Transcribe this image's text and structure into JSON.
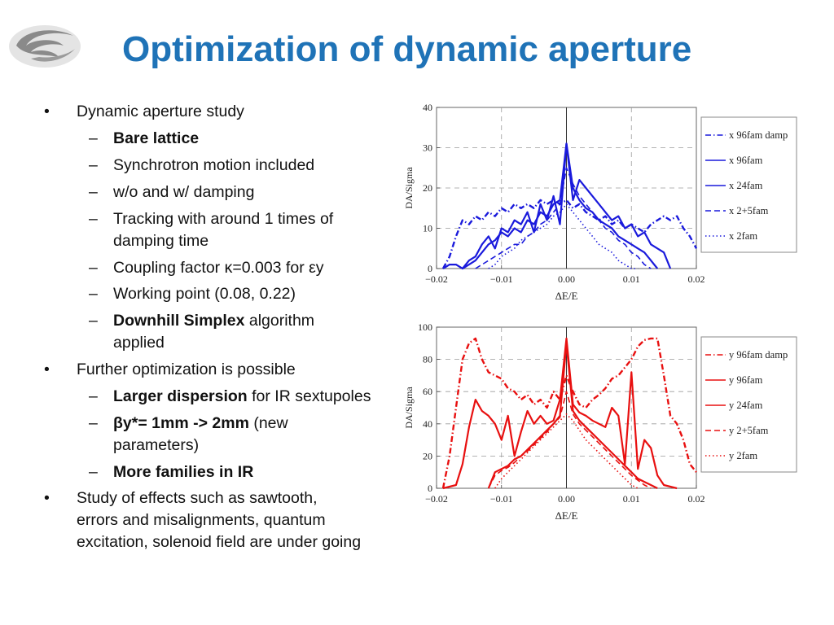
{
  "slide": {
    "title": "Optimization of dynamic aperture",
    "logo": {
      "icon": "institute-logo-icon"
    }
  },
  "bullets": [
    {
      "text": "Dynamic aperture study",
      "children": [
        {
          "bold": "Bare lattice",
          "text": ""
        },
        {
          "bold": "",
          "text": "Synchrotron motion included"
        },
        {
          "bold": "",
          "text": "w/o and w/ damping"
        },
        {
          "bold": "",
          "text": "Tracking with around 1 times of damping time"
        },
        {
          "bold": "",
          "text": "Coupling factor κ=0.003 for εy"
        },
        {
          "bold": "",
          "text": "Working point (0.08, 0.22)"
        },
        {
          "bold": "Downhill Simplex",
          "text": " algorithm applied"
        }
      ]
    },
    {
      "text": "Further optimization is possible",
      "children": [
        {
          "bold": "Larger dispersion",
          "text": " for IR sextupoles"
        },
        {
          "bold": "βy*= 1mm -> 2mm",
          "text": " (new parameters)"
        },
        {
          "bold": "More families in IR",
          "text": ""
        }
      ]
    },
    {
      "text": "Study of effects such as sawtooth, errors and misalignments, quantum excitation, solenoid field are under going",
      "children": []
    }
  ],
  "chart_data": [
    {
      "type": "line",
      "xlabel": "ΔE/E",
      "ylabel": "DA/Sigma",
      "xlim": [
        -0.02,
        0.02
      ],
      "ylim": [
        0,
        40
      ],
      "xticks": [
        "−0.02",
        "−0.01",
        "0.00",
        "0.01",
        "0.02"
      ],
      "yticks": [
        "0",
        "10",
        "20",
        "30",
        "40"
      ],
      "grid": true,
      "legend_position": "right",
      "color": "#1a1adc",
      "series": [
        {
          "name": "x 96fam damp",
          "style": "dashdot",
          "x": [
            -0.019,
            -0.018,
            -0.017,
            -0.016,
            -0.015,
            -0.014,
            -0.013,
            -0.012,
            -0.011,
            -0.01,
            -0.009,
            -0.008,
            -0.007,
            -0.006,
            -0.005,
            -0.004,
            -0.003,
            -0.002,
            -0.001,
            0.0,
            0.001,
            0.002,
            0.003,
            0.004,
            0.005,
            0.006,
            0.007,
            0.008,
            0.009,
            0.01,
            0.011,
            0.012,
            0.013,
            0.014,
            0.015,
            0.016,
            0.017,
            0.018,
            0.019,
            0.02
          ],
          "values": [
            0,
            3,
            8,
            12,
            11,
            13,
            12,
            14,
            13,
            15,
            14,
            16,
            15,
            16,
            15,
            17,
            16,
            17,
            16,
            17,
            15,
            16,
            14,
            13,
            12,
            13,
            11,
            12,
            10,
            11,
            10,
            9,
            11,
            12,
            13,
            12,
            13,
            10,
            8,
            5
          ]
        },
        {
          "name": "x 96fam",
          "style": "solid",
          "x": [
            -0.019,
            -0.018,
            -0.017,
            -0.016,
            -0.015,
            -0.014,
            -0.013,
            -0.012,
            -0.011,
            -0.01,
            -0.009,
            -0.008,
            -0.007,
            -0.006,
            -0.005,
            -0.004,
            -0.003,
            -0.002,
            -0.001,
            0.0,
            0.001,
            0.002,
            0.003,
            0.004,
            0.005,
            0.006,
            0.007,
            0.008,
            0.009,
            0.01,
            0.011,
            0.012,
            0.013,
            0.014,
            0.015,
            0.016
          ],
          "values": [
            0,
            1,
            1,
            0,
            2,
            3,
            6,
            8,
            5,
            10,
            9,
            12,
            11,
            14,
            9,
            16,
            12,
            18,
            11,
            31,
            17,
            22,
            20,
            18,
            16,
            14,
            12,
            13,
            10,
            11,
            8,
            9,
            6,
            5,
            4,
            0
          ]
        },
        {
          "name": "x 24fam",
          "style": "solid",
          "x": [
            -0.016,
            -0.015,
            -0.014,
            -0.013,
            -0.012,
            -0.011,
            -0.01,
            -0.009,
            -0.008,
            -0.007,
            -0.006,
            -0.005,
            -0.004,
            -0.003,
            -0.002,
            -0.001,
            0.0,
            0.001,
            0.002,
            0.003,
            0.004,
            0.005,
            0.006,
            0.007,
            0.008,
            0.009,
            0.01,
            0.011,
            0.012,
            0.013,
            0.014
          ],
          "values": [
            0,
            1,
            2,
            4,
            6,
            7,
            9,
            8,
            10,
            9,
            12,
            11,
            14,
            13,
            16,
            17,
            31,
            20,
            17,
            15,
            14,
            12,
            11,
            10,
            8,
            7,
            6,
            5,
            4,
            2,
            0
          ]
        },
        {
          "name": "x 2+5fam",
          "style": "dashed",
          "x": [
            -0.014,
            -0.013,
            -0.012,
            -0.011,
            -0.01,
            -0.009,
            -0.008,
            -0.007,
            -0.006,
            -0.005,
            -0.004,
            -0.003,
            -0.002,
            -0.001,
            0.0,
            0.001,
            0.002,
            0.003,
            0.004,
            0.005,
            0.006,
            0.007,
            0.008,
            0.009,
            0.01,
            0.011,
            0.012,
            0.013
          ],
          "values": [
            0,
            1,
            2,
            3,
            4,
            5,
            6,
            6,
            8,
            9,
            11,
            12,
            14,
            16,
            25,
            21,
            18,
            16,
            14,
            12,
            10,
            9,
            7,
            6,
            4,
            3,
            1,
            0
          ]
        },
        {
          "name": "x 2fam",
          "style": "dotted",
          "x": [
            -0.012,
            -0.011,
            -0.01,
            -0.009,
            -0.008,
            -0.007,
            -0.006,
            -0.005,
            -0.004,
            -0.003,
            -0.002,
            -0.001,
            0.0,
            0.001,
            0.002,
            0.003,
            0.004,
            0.005,
            0.006,
            0.007,
            0.008,
            0.009,
            0.01,
            0.011
          ],
          "values": [
            0,
            1,
            3,
            4,
            5,
            7,
            8,
            9,
            10,
            11,
            13,
            14,
            16,
            14,
            12,
            10,
            8,
            6,
            5,
            4,
            2,
            1,
            0,
            0
          ]
        }
      ]
    },
    {
      "type": "line",
      "xlabel": "ΔE/E",
      "ylabel": "DA/Sigma",
      "xlim": [
        -0.02,
        0.02
      ],
      "ylim": [
        0,
        100
      ],
      "xticks": [
        "−0.02",
        "−0.01",
        "0.00",
        "0.01",
        "0.02"
      ],
      "yticks": [
        "0",
        "20",
        "40",
        "60",
        "80",
        "100"
      ],
      "grid": true,
      "legend_position": "right",
      "color": "#e81010",
      "series": [
        {
          "name": "y 96fam damp",
          "style": "dashdot",
          "x": [
            -0.019,
            -0.018,
            -0.017,
            -0.016,
            -0.015,
            -0.014,
            -0.013,
            -0.012,
            -0.011,
            -0.01,
            -0.009,
            -0.008,
            -0.007,
            -0.006,
            -0.005,
            -0.004,
            -0.003,
            -0.002,
            -0.001,
            0.0,
            0.001,
            0.002,
            0.003,
            0.004,
            0.005,
            0.006,
            0.007,
            0.008,
            0.009,
            0.01,
            0.011,
            0.012,
            0.013,
            0.014,
            0.015,
            0.016,
            0.017,
            0.018,
            0.019,
            0.02
          ],
          "values": [
            0,
            20,
            50,
            80,
            90,
            93,
            80,
            72,
            70,
            68,
            62,
            60,
            55,
            58,
            52,
            55,
            50,
            60,
            55,
            70,
            60,
            52,
            50,
            55,
            58,
            62,
            68,
            70,
            75,
            80,
            88,
            92,
            93,
            93,
            70,
            45,
            40,
            30,
            15,
            10
          ]
        },
        {
          "name": "y 96fam",
          "style": "solid",
          "x": [
            -0.019,
            -0.018,
            -0.017,
            -0.016,
            -0.015,
            -0.014,
            -0.013,
            -0.012,
            -0.011,
            -0.01,
            -0.009,
            -0.008,
            -0.007,
            -0.006,
            -0.005,
            -0.004,
            -0.003,
            -0.002,
            -0.001,
            0.0,
            0.001,
            0.002,
            0.003,
            0.004,
            0.005,
            0.006,
            0.007,
            0.008,
            0.009,
            0.01,
            0.011,
            0.012,
            0.013,
            0.014,
            0.015,
            0.016,
            0.017
          ],
          "values": [
            0,
            1,
            2,
            15,
            38,
            55,
            48,
            45,
            40,
            30,
            45,
            20,
            35,
            48,
            40,
            45,
            40,
            42,
            55,
            93,
            52,
            47,
            45,
            42,
            40,
            38,
            50,
            45,
            15,
            72,
            12,
            30,
            25,
            8,
            2,
            1,
            0
          ]
        },
        {
          "name": "y 24fam",
          "style": "solid",
          "x": [
            -0.012,
            -0.011,
            -0.01,
            -0.009,
            -0.008,
            -0.007,
            -0.006,
            -0.005,
            -0.004,
            -0.003,
            -0.002,
            -0.001,
            0.0,
            0.001,
            0.002,
            0.003,
            0.004,
            0.005,
            0.006,
            0.007,
            0.008,
            0.009,
            0.01,
            0.011,
            0.012,
            0.013,
            0.014
          ],
          "values": [
            0,
            10,
            12,
            14,
            18,
            20,
            24,
            28,
            32,
            36,
            40,
            45,
            90,
            48,
            42,
            38,
            34,
            30,
            26,
            22,
            18,
            14,
            10,
            6,
            4,
            2,
            0
          ]
        },
        {
          "name": "y 2+5fam",
          "style": "dashed",
          "x": [
            -0.012,
            -0.011,
            -0.01,
            -0.009,
            -0.008,
            -0.007,
            -0.006,
            -0.005,
            -0.004,
            -0.003,
            -0.002,
            -0.001,
            0.0,
            0.001,
            0.002,
            0.003,
            0.004,
            0.005,
            0.006,
            0.007,
            0.008,
            0.009,
            0.01,
            0.011,
            0.012,
            0.013
          ],
          "values": [
            0,
            8,
            11,
            13,
            16,
            20,
            23,
            27,
            31,
            35,
            40,
            44,
            60,
            46,
            40,
            36,
            32,
            28,
            24,
            20,
            16,
            12,
            8,
            5,
            2,
            0
          ]
        },
        {
          "name": "y 2fam",
          "style": "dotted",
          "x": [
            -0.011,
            -0.01,
            -0.009,
            -0.008,
            -0.007,
            -0.006,
            -0.005,
            -0.004,
            -0.003,
            -0.002,
            -0.001,
            0.0,
            0.001,
            0.002,
            0.003,
            0.004,
            0.005,
            0.006,
            0.007,
            0.008,
            0.009,
            0.01,
            0.011
          ],
          "values": [
            0,
            6,
            10,
            14,
            18,
            22,
            26,
            30,
            34,
            38,
            42,
            46,
            42,
            36,
            30,
            26,
            22,
            18,
            14,
            10,
            6,
            2,
            0
          ]
        }
      ]
    }
  ]
}
